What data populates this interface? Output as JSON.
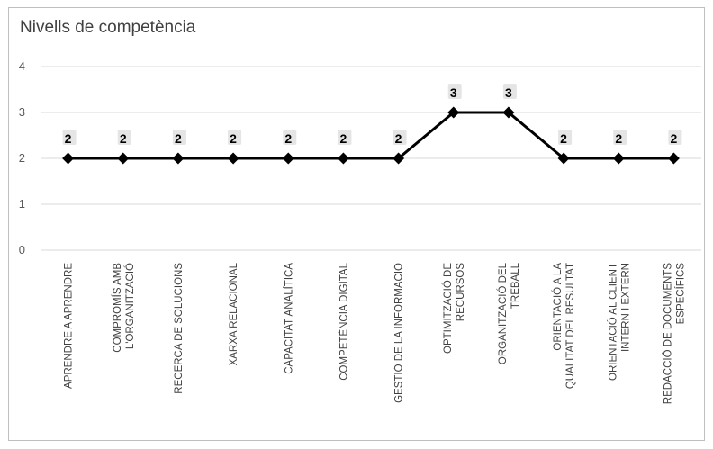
{
  "chart_data": {
    "type": "line",
    "title": "Nivells de competència",
    "categories": [
      [
        "APRENDRE A APRENDRE"
      ],
      [
        "COMPROMÍS AMB",
        "L'ORGANITZACIÓ"
      ],
      [
        "RECERCA DE SOLUCIONS"
      ],
      [
        "XARXA RELACIONAL"
      ],
      [
        "CAPACITAT ANALÍTICA"
      ],
      [
        "COMPETÈNCIA DIGITAL"
      ],
      [
        "GESTIÓ DE LA INFORMACIÓ"
      ],
      [
        "OPTIMITZACIÓ DE",
        "RECURSOS"
      ],
      [
        "ORGANITZACIÓ DEL",
        "TREBALL"
      ],
      [
        "ORIENTACIÓ A LA",
        "QUALITAT DEL RESULTAT"
      ],
      [
        "ORIENTACIÓ AL CLIENT",
        "INTERN I EXTERN"
      ],
      [
        "REDACCIÓ DE DOCUMENTS",
        "ESPECÍFICS"
      ]
    ],
    "values": [
      2,
      2,
      2,
      2,
      2,
      2,
      2,
      3,
      3,
      2,
      2,
      2
    ],
    "ylim": [
      0,
      4
    ],
    "yticks": [
      0,
      1,
      2,
      3,
      4
    ],
    "grid": true,
    "legend": "none",
    "marker": "diamond",
    "data_labels": true,
    "colors": {
      "line": "#000000",
      "grid": "#d9d9d9",
      "axis_text": "#595959",
      "title": "#404040"
    }
  }
}
